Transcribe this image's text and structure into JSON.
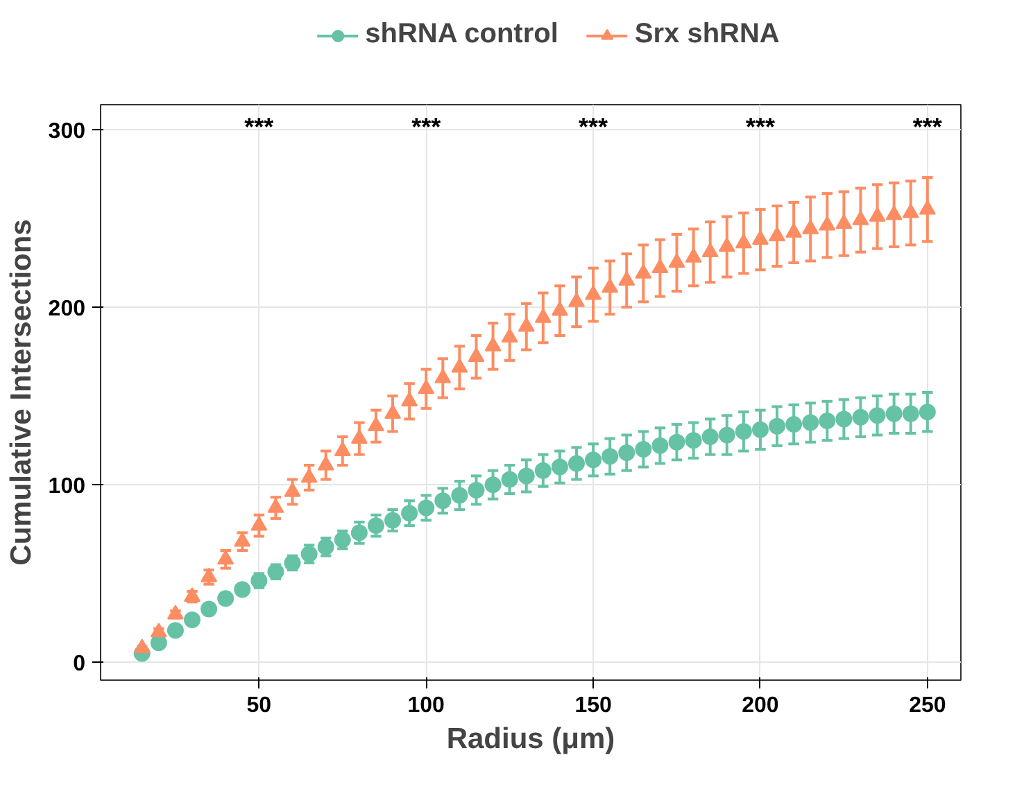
{
  "chart_data": {
    "type": "scatter",
    "xlabel": "Radius (μm)",
    "ylabel": "Cumulative Intersections",
    "x": [
      15,
      20,
      25,
      30,
      35,
      40,
      45,
      50,
      55,
      60,
      65,
      70,
      75,
      80,
      85,
      90,
      95,
      100,
      105,
      110,
      115,
      120,
      125,
      130,
      135,
      140,
      145,
      150,
      155,
      160,
      165,
      170,
      175,
      180,
      185,
      190,
      195,
      200,
      205,
      210,
      215,
      220,
      225,
      230,
      235,
      240,
      245,
      250
    ],
    "series": [
      {
        "name": "shRNA control",
        "color": "#66c2a5",
        "marker": "circle",
        "values": [
          5,
          11,
          18,
          24,
          30,
          36,
          41,
          46,
          51,
          56,
          61,
          65,
          69,
          73,
          77,
          80,
          84,
          87,
          91,
          94,
          97,
          100,
          103,
          105,
          108,
          110,
          112,
          114,
          116,
          118,
          120,
          122,
          124,
          125,
          127,
          128,
          130,
          131,
          133,
          134,
          135,
          136,
          137,
          138,
          139,
          140,
          140,
          141
        ],
        "errors": [
          1,
          1,
          2,
          2,
          3,
          3,
          3,
          4,
          4,
          4,
          5,
          5,
          5,
          6,
          6,
          6,
          7,
          7,
          7,
          8,
          8,
          8,
          8,
          9,
          9,
          9,
          9,
          9,
          10,
          10,
          10,
          10,
          10,
          10,
          10,
          11,
          11,
          11,
          11,
          11,
          11,
          11,
          11,
          11,
          11,
          11,
          11,
          11
        ]
      },
      {
        "name": "Srx shRNA",
        "color": "#fc8d62",
        "marker": "triangle",
        "values": [
          8,
          17,
          27,
          37,
          48,
          58,
          68,
          77,
          87,
          96,
          104,
          111,
          119,
          126,
          133,
          140,
          147,
          154,
          160,
          166,
          172,
          178,
          183,
          189,
          194,
          198,
          203,
          207,
          211,
          215,
          219,
          222,
          225,
          228,
          231,
          234,
          236,
          238,
          240,
          242,
          244,
          246,
          247,
          249,
          251,
          252,
          253,
          255
        ],
        "errors": [
          1,
          2,
          2,
          3,
          4,
          5,
          5,
          6,
          6,
          7,
          7,
          8,
          8,
          9,
          9,
          10,
          10,
          11,
          11,
          12,
          12,
          13,
          13,
          13,
          14,
          14,
          14,
          15,
          15,
          15,
          16,
          16,
          16,
          16,
          17,
          17,
          17,
          17,
          17,
          17,
          18,
          18,
          18,
          18,
          18,
          18,
          18,
          18
        ]
      }
    ],
    "annotations": [
      "***",
      "***",
      "***",
      "***",
      "***"
    ],
    "xlim": [
      2.6,
      260
    ],
    "xticks": [
      50,
      100,
      150,
      200,
      250
    ],
    "ylim": [
      -10,
      314
    ],
    "yticks": [
      0,
      100,
      200,
      300
    ],
    "grid": true,
    "legend": "top"
  }
}
